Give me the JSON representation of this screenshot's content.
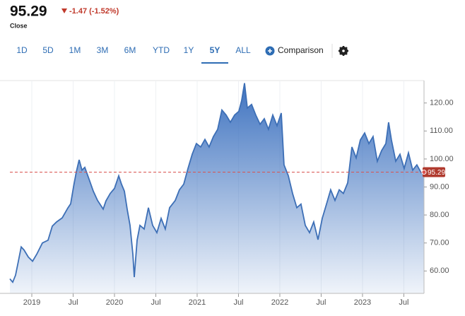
{
  "header": {
    "price": "95.29",
    "change": "-1.47 (-1.52%)",
    "label": "Close"
  },
  "toolbar": {
    "ranges": [
      "1D",
      "5D",
      "1M",
      "3M",
      "6M",
      "YTD",
      "1Y",
      "5Y",
      "ALL"
    ],
    "active": "5Y",
    "comparison": "Comparison"
  },
  "chart_data": {
    "type": "area",
    "color": "#3d6fb6",
    "x": [
      2018.735,
      2018.769,
      2018.803,
      2018.838,
      2018.872,
      2018.906,
      2018.957,
      2019.009,
      2019.06,
      2019.128,
      2019.197,
      2019.248,
      2019.299,
      2019.368,
      2019.436,
      2019.47,
      2019.504,
      2019.538,
      2019.573,
      2019.607,
      2019.641,
      2019.692,
      2019.744,
      2019.795,
      2019.863,
      2019.897,
      2019.949,
      2020.0,
      2020.051,
      2020.085,
      2020.12,
      2020.154,
      2020.188,
      2020.222,
      2020.239,
      2020.274,
      2020.308,
      2020.359,
      2020.41,
      2020.462,
      2020.513,
      2020.564,
      2020.615,
      2020.667,
      2020.735,
      2020.786,
      2020.838,
      2020.889,
      2020.94,
      2020.991,
      2021.043,
      2021.094,
      2021.145,
      2021.197,
      2021.248,
      2021.299,
      2021.35,
      2021.402,
      2021.453,
      2021.504,
      2021.538,
      2021.573,
      2021.607,
      2021.658,
      2021.709,
      2021.761,
      2021.812,
      2021.863,
      2021.915,
      2021.966,
      2022.017,
      2022.051,
      2022.103,
      2022.154,
      2022.205,
      2022.256,
      2022.308,
      2022.359,
      2022.41,
      2022.462,
      2022.513,
      2022.564,
      2022.615,
      2022.667,
      2022.718,
      2022.769,
      2022.821,
      2022.872,
      2022.923,
      2022.974,
      2023.026,
      2023.077,
      2023.128,
      2023.179,
      2023.231,
      2023.282,
      2023.316,
      2023.35,
      2023.402,
      2023.453,
      2023.504,
      2023.556,
      2023.607,
      2023.658,
      2023.709,
      2023.744
    ],
    "values": [
      57.2,
      56,
      58.5,
      63.5,
      68.6,
      67.5,
      65,
      63.5,
      66,
      70,
      71,
      76,
      77.5,
      79,
      82.5,
      84,
      90,
      95.3,
      99.7,
      96,
      97,
      92.8,
      88.5,
      85.2,
      82.1,
      85,
      87.7,
      89.5,
      94,
      91,
      88.5,
      82,
      76.3,
      66,
      57.8,
      71,
      76.3,
      75,
      82.6,
      76.3,
      73.7,
      78.8,
      75,
      82.6,
      85.2,
      89,
      91,
      96.6,
      101.7,
      105.5,
      104.3,
      107,
      104.3,
      108,
      110.6,
      117.5,
      115.7,
      113.1,
      115.7,
      117,
      120.8,
      127.1,
      118.2,
      119.5,
      115.7,
      112.4,
      114.4,
      110.6,
      115.7,
      111.9,
      116.4,
      97.9,
      94,
      87.7,
      82.6,
      83.9,
      76.3,
      73.7,
      77.5,
      71.2,
      78.8,
      83.9,
      89,
      85.2,
      89,
      87.7,
      91.5,
      104.3,
      100.4,
      106.8,
      109.3,
      105.5,
      108,
      99.2,
      103,
      105.5,
      113.1,
      106.8,
      99.2,
      101.7,
      96.6,
      102.2,
      96,
      97.9,
      95.1,
      95.29
    ],
    "xlim": [
      2018.735,
      2023.744
    ],
    "xticks": [
      {
        "value": 2019,
        "label": "2019"
      },
      {
        "value": 2019.5,
        "label": "Jul"
      },
      {
        "value": 2020,
        "label": "2020"
      },
      {
        "value": 2020.5,
        "label": "Jul"
      },
      {
        "value": 2021,
        "label": "2021"
      },
      {
        "value": 2021.5,
        "label": "Jul"
      },
      {
        "value": 2022,
        "label": "2022"
      },
      {
        "value": 2022.5,
        "label": "Jul"
      },
      {
        "value": 2023,
        "label": "2023"
      },
      {
        "value": 2023.5,
        "label": "Jul"
      }
    ],
    "ylim": [
      52,
      128
    ],
    "yticks": [
      {
        "value": 60,
        "label": "60.00"
      },
      {
        "value": 70,
        "label": "70.00"
      },
      {
        "value": 80,
        "label": "80.00"
      },
      {
        "value": 90,
        "label": "90.00"
      },
      {
        "value": 100,
        "label": "100.00"
      },
      {
        "value": 110,
        "label": "110.00"
      },
      {
        "value": 120,
        "label": "120.00"
      }
    ],
    "reference_line": {
      "value": 95.29,
      "label": "95.29",
      "color": "#d9534f"
    },
    "grid": true
  }
}
